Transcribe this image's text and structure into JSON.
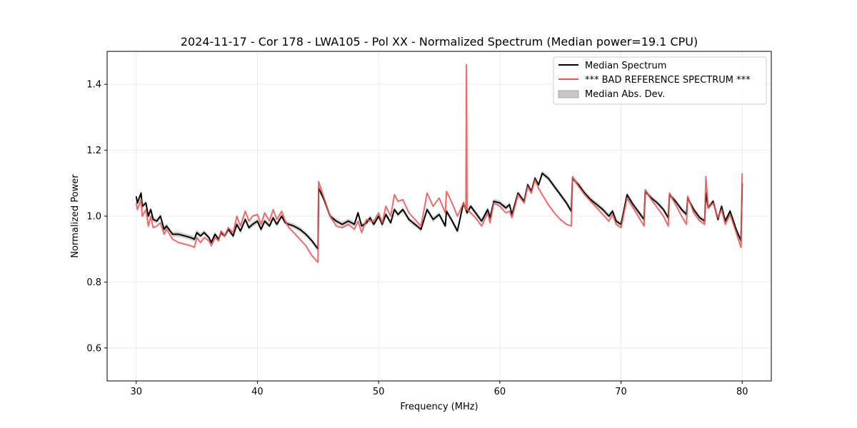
{
  "chart_data": {
    "type": "line",
    "title": "2024-11-17 - Cor 178 - LWA105 - Pol XX - Normalized Spectrum (Median power=19.1 CPU)",
    "xlabel": "Frequency (MHz)",
    "ylabel": "Normalized Power",
    "xlim": [
      27.6,
      82.4
    ],
    "ylim": [
      0.5,
      1.5
    ],
    "xticks": [
      30,
      40,
      50,
      60,
      70,
      80
    ],
    "yticks": [
      0.6,
      0.8,
      1.0,
      1.2,
      1.4
    ],
    "xtick_labels": [
      "30",
      "40",
      "50",
      "60",
      "70",
      "80"
    ],
    "ytick_labels": [
      "0.6",
      "0.8",
      "1.0",
      "1.2",
      "1.4"
    ],
    "grid": true,
    "legend_position": "top-right",
    "legend": [
      {
        "label": "Median Spectrum",
        "kind": "line",
        "color": "#000000"
      },
      {
        "label": "*** BAD REFERENCE SPECTRUM ***",
        "kind": "line",
        "color": "#ef5350"
      },
      {
        "label": "Median Abs. Dev.",
        "kind": "band",
        "color": "#c8c8c8"
      }
    ],
    "series": [
      {
        "name": "Median Spectrum",
        "color": "#000000",
        "x": [
          30.0,
          30.1,
          30.4,
          30.5,
          30.8,
          31.0,
          31.2,
          31.4,
          31.7,
          32.0,
          32.3,
          32.5,
          33.0,
          33.5,
          34.0,
          34.5,
          34.8,
          35.0,
          35.3,
          35.6,
          36.0,
          36.2,
          36.5,
          36.8,
          37.0,
          37.3,
          37.6,
          38.0,
          38.3,
          38.6,
          39.0,
          39.3,
          39.6,
          40.0,
          40.3,
          40.6,
          41.0,
          41.3,
          41.6,
          42.0,
          42.3,
          42.6,
          43.0,
          43.5,
          44.0,
          44.5,
          45.0,
          45.05,
          45.5,
          46.0,
          46.5,
          47.0,
          47.5,
          48.0,
          48.3,
          48.6,
          49.0,
          49.3,
          49.6,
          50.0,
          50.3,
          50.6,
          51.0,
          51.3,
          51.6,
          52.0,
          52.5,
          53.0,
          53.5,
          54.0,
          54.5,
          55.0,
          55.5,
          55.6,
          56.0,
          56.5,
          57.0,
          57.3,
          57.6,
          58.0,
          58.5,
          59.0,
          59.2,
          59.5,
          60.0,
          60.5,
          60.8,
          61.0,
          61.5,
          62.0,
          62.3,
          62.6,
          62.9,
          63.2,
          63.5,
          64.0,
          64.5,
          65.0,
          65.5,
          65.9,
          66.0,
          66.5,
          67.0,
          67.5,
          68.0,
          68.5,
          69.0,
          69.3,
          69.6,
          70.0,
          70.5,
          71.0,
          71.5,
          71.9,
          72.0,
          72.5,
          73.0,
          73.5,
          73.9,
          74.0,
          74.5,
          75.0,
          75.4,
          75.5,
          76.0,
          76.5,
          76.9,
          77.0,
          77.2,
          77.6,
          78.0,
          78.3,
          78.6,
          79.0,
          79.5,
          79.9,
          80.0
        ],
        "values": [
          1.06,
          1.04,
          1.07,
          1.03,
          1.04,
          1.0,
          1.02,
          0.99,
          0.985,
          1.0,
          0.96,
          0.97,
          0.945,
          0.945,
          0.94,
          0.935,
          0.93,
          0.95,
          0.94,
          0.95,
          0.935,
          0.92,
          0.945,
          0.93,
          0.95,
          0.94,
          0.96,
          0.94,
          0.975,
          0.955,
          0.99,
          0.965,
          0.975,
          0.985,
          0.96,
          0.985,
          0.97,
          0.995,
          0.975,
          1.0,
          0.98,
          0.975,
          0.97,
          0.96,
          0.945,
          0.925,
          0.9,
          1.085,
          1.05,
          1.0,
          0.985,
          0.975,
          0.985,
          0.975,
          1.01,
          0.97,
          0.98,
          0.995,
          0.975,
          1.0,
          0.975,
          1.005,
          0.98,
          1.02,
          1.005,
          1.02,
          0.99,
          0.975,
          0.96,
          1.02,
          0.99,
          1.005,
          0.97,
          1.015,
          0.99,
          0.955,
          1.04,
          1.01,
          1.03,
          1.01,
          0.985,
          1.02,
          0.995,
          1.045,
          1.04,
          1.025,
          1.035,
          1.005,
          1.07,
          1.045,
          1.095,
          1.075,
          1.115,
          1.095,
          1.13,
          1.115,
          1.09,
          1.065,
          1.04,
          1.015,
          1.115,
          1.095,
          1.07,
          1.05,
          1.035,
          1.02,
          1.0,
          1.015,
          0.985,
          0.975,
          1.065,
          1.035,
          1.01,
          0.99,
          1.075,
          1.055,
          1.04,
          1.02,
          0.995,
          1.065,
          1.045,
          1.02,
          1.005,
          1.055,
          1.02,
          0.995,
          0.985,
          1.07,
          1.025,
          1.045,
          0.99,
          1.03,
          0.985,
          1.015,
          0.96,
          0.925,
          1.1
        ]
      },
      {
        "name": "*** BAD REFERENCE SPECTRUM ***",
        "color": "#ef5350",
        "x": [
          30.0,
          30.1,
          30.4,
          30.5,
          30.8,
          31.0,
          31.2,
          31.4,
          31.7,
          32.0,
          32.3,
          32.5,
          33.0,
          33.5,
          34.0,
          34.5,
          34.8,
          35.0,
          35.3,
          35.6,
          36.0,
          36.2,
          36.5,
          36.8,
          37.0,
          37.3,
          37.6,
          38.0,
          38.3,
          38.6,
          39.0,
          39.3,
          39.6,
          40.0,
          40.3,
          40.6,
          41.0,
          41.3,
          41.6,
          42.0,
          42.3,
          42.6,
          43.0,
          43.5,
          44.0,
          44.5,
          45.0,
          45.05,
          45.5,
          46.0,
          46.5,
          47.0,
          47.5,
          48.0,
          48.3,
          48.6,
          49.0,
          49.3,
          49.6,
          50.0,
          50.3,
          50.6,
          51.0,
          51.3,
          51.6,
          52.0,
          52.5,
          53.0,
          53.5,
          54.0,
          54.5,
          55.0,
          55.5,
          55.6,
          56.0,
          56.5,
          57.0,
          57.2,
          57.25,
          57.3,
          57.6,
          58.0,
          58.5,
          59.0,
          59.2,
          59.5,
          60.0,
          60.5,
          60.8,
          61.0,
          61.5,
          62.0,
          62.3,
          62.6,
          62.9,
          63.2,
          63.5,
          64.0,
          64.5,
          65.0,
          65.5,
          65.9,
          66.0,
          66.5,
          67.0,
          67.5,
          68.0,
          68.5,
          69.0,
          69.3,
          69.6,
          70.0,
          70.5,
          71.0,
          71.5,
          71.9,
          72.0,
          72.5,
          73.0,
          73.5,
          73.9,
          74.0,
          74.5,
          75.0,
          75.4,
          75.5,
          76.0,
          76.5,
          76.9,
          77.0,
          77.2,
          77.6,
          78.0,
          78.3,
          78.6,
          79.0,
          79.5,
          79.9,
          80.0
        ],
        "values": [
          1.04,
          1.02,
          1.05,
          1.0,
          1.02,
          0.97,
          1.0,
          0.965,
          0.97,
          0.98,
          0.945,
          0.96,
          0.93,
          0.92,
          0.915,
          0.91,
          0.905,
          0.935,
          0.92,
          0.935,
          0.925,
          0.91,
          0.935,
          0.925,
          0.955,
          0.94,
          0.965,
          0.95,
          1.0,
          0.97,
          1.015,
          0.985,
          1.0,
          1.005,
          0.975,
          1.01,
          0.985,
          1.02,
          0.99,
          1.015,
          0.985,
          0.965,
          0.95,
          0.93,
          0.91,
          0.88,
          0.86,
          1.105,
          1.055,
          1.0,
          0.97,
          0.965,
          0.975,
          0.96,
          0.985,
          0.95,
          0.99,
          0.985,
          0.985,
          1.01,
          0.98,
          1.03,
          1.0,
          1.065,
          1.045,
          1.05,
          1.01,
          0.99,
          0.97,
          1.07,
          1.03,
          1.055,
          1.01,
          1.075,
          1.045,
          1.0,
          1.04,
          1.02,
          1.46,
          1.02,
          1.01,
          0.995,
          0.97,
          1.01,
          0.98,
          1.04,
          1.03,
          1.01,
          1.015,
          0.995,
          1.065,
          1.04,
          1.09,
          1.07,
          1.11,
          1.085,
          1.065,
          1.035,
          1.01,
          0.99,
          0.975,
          0.97,
          1.12,
          1.09,
          1.065,
          1.045,
          1.025,
          1.005,
          0.985,
          1.005,
          0.975,
          0.965,
          1.055,
          1.025,
          0.995,
          0.97,
          1.08,
          1.05,
          1.025,
          1.0,
          0.97,
          1.07,
          1.035,
          1.0,
          0.975,
          1.06,
          1.01,
          0.985,
          0.975,
          1.12,
          1.025,
          1.04,
          0.995,
          1.02,
          0.975,
          1.005,
          0.95,
          0.905,
          1.13
        ]
      }
    ],
    "mad_band": {
      "name": "Median Abs. Dev.",
      "color": "#c8c8c8",
      "half_width": 0.008
    }
  }
}
